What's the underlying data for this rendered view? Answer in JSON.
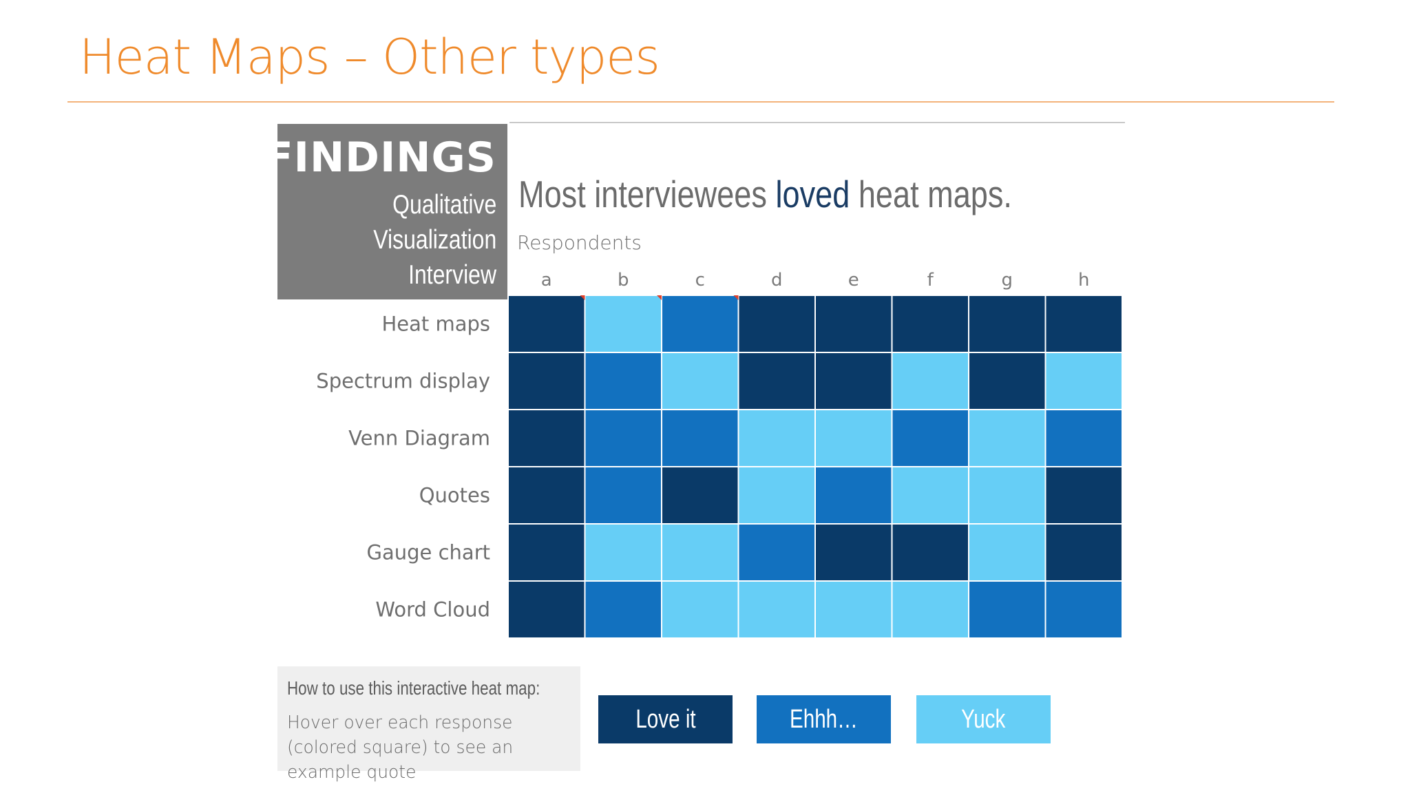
{
  "slide": {
    "title": "Heat Maps – Other types"
  },
  "findings": {
    "title": "FINDINGS",
    "subtitle_lines": [
      "Qualitative",
      "Visualization",
      "Interview"
    ]
  },
  "heading": {
    "prefix": "Most interviewees ",
    "emphasis": "loved",
    "suffix": " heat maps."
  },
  "colors": {
    "love": "#0a3a68",
    "ehhh": "#1271bf",
    "yuck": "#66cef6",
    "title_accent": "#ef8a2b",
    "findings_bg": "#7c7c7c"
  },
  "chart_data": {
    "type": "heatmap",
    "title": "Most interviewees loved heat maps.",
    "xlabel": "Respondents",
    "ylabel": "",
    "x_categories": [
      "a",
      "b",
      "c",
      "d",
      "e",
      "f",
      "g",
      "h"
    ],
    "y_categories": [
      "Heat maps",
      "Spectrum display",
      "Venn Diagram",
      "Quotes",
      "Gauge chart",
      "Word Cloud"
    ],
    "scale": [
      "Love it",
      "Ehhh…",
      "Yuck"
    ],
    "values": [
      [
        "Love it",
        "Yuck",
        "Ehhh…",
        "Love it",
        "Love it",
        "Love it",
        "Love it",
        "Love it"
      ],
      [
        "Love it",
        "Ehhh…",
        "Yuck",
        "Love it",
        "Love it",
        "Yuck",
        "Love it",
        "Yuck"
      ],
      [
        "Love it",
        "Ehhh…",
        "Ehhh…",
        "Yuck",
        "Yuck",
        "Ehhh…",
        "Yuck",
        "Ehhh…"
      ],
      [
        "Love it",
        "Ehhh…",
        "Love it",
        "Yuck",
        "Ehhh…",
        "Yuck",
        "Yuck",
        "Love it"
      ],
      [
        "Love it",
        "Yuck",
        "Yuck",
        "Ehhh…",
        "Love it",
        "Love it",
        "Yuck",
        "Love it"
      ],
      [
        "Love it",
        "Ehhh…",
        "Yuck",
        "Yuck",
        "Yuck",
        "Yuck",
        "Ehhh…",
        "Ehhh…"
      ]
    ],
    "legend": [
      {
        "label": "Love it",
        "color": "#0a3a68"
      },
      {
        "label": "Ehhh…",
        "color": "#1271bf"
      },
      {
        "label": "Yuck",
        "color": "#66cef6"
      }
    ]
  },
  "instructions": {
    "heading": "How to use this interactive heat map:",
    "text": "Hover over each response (colored square) to see an example quote"
  }
}
